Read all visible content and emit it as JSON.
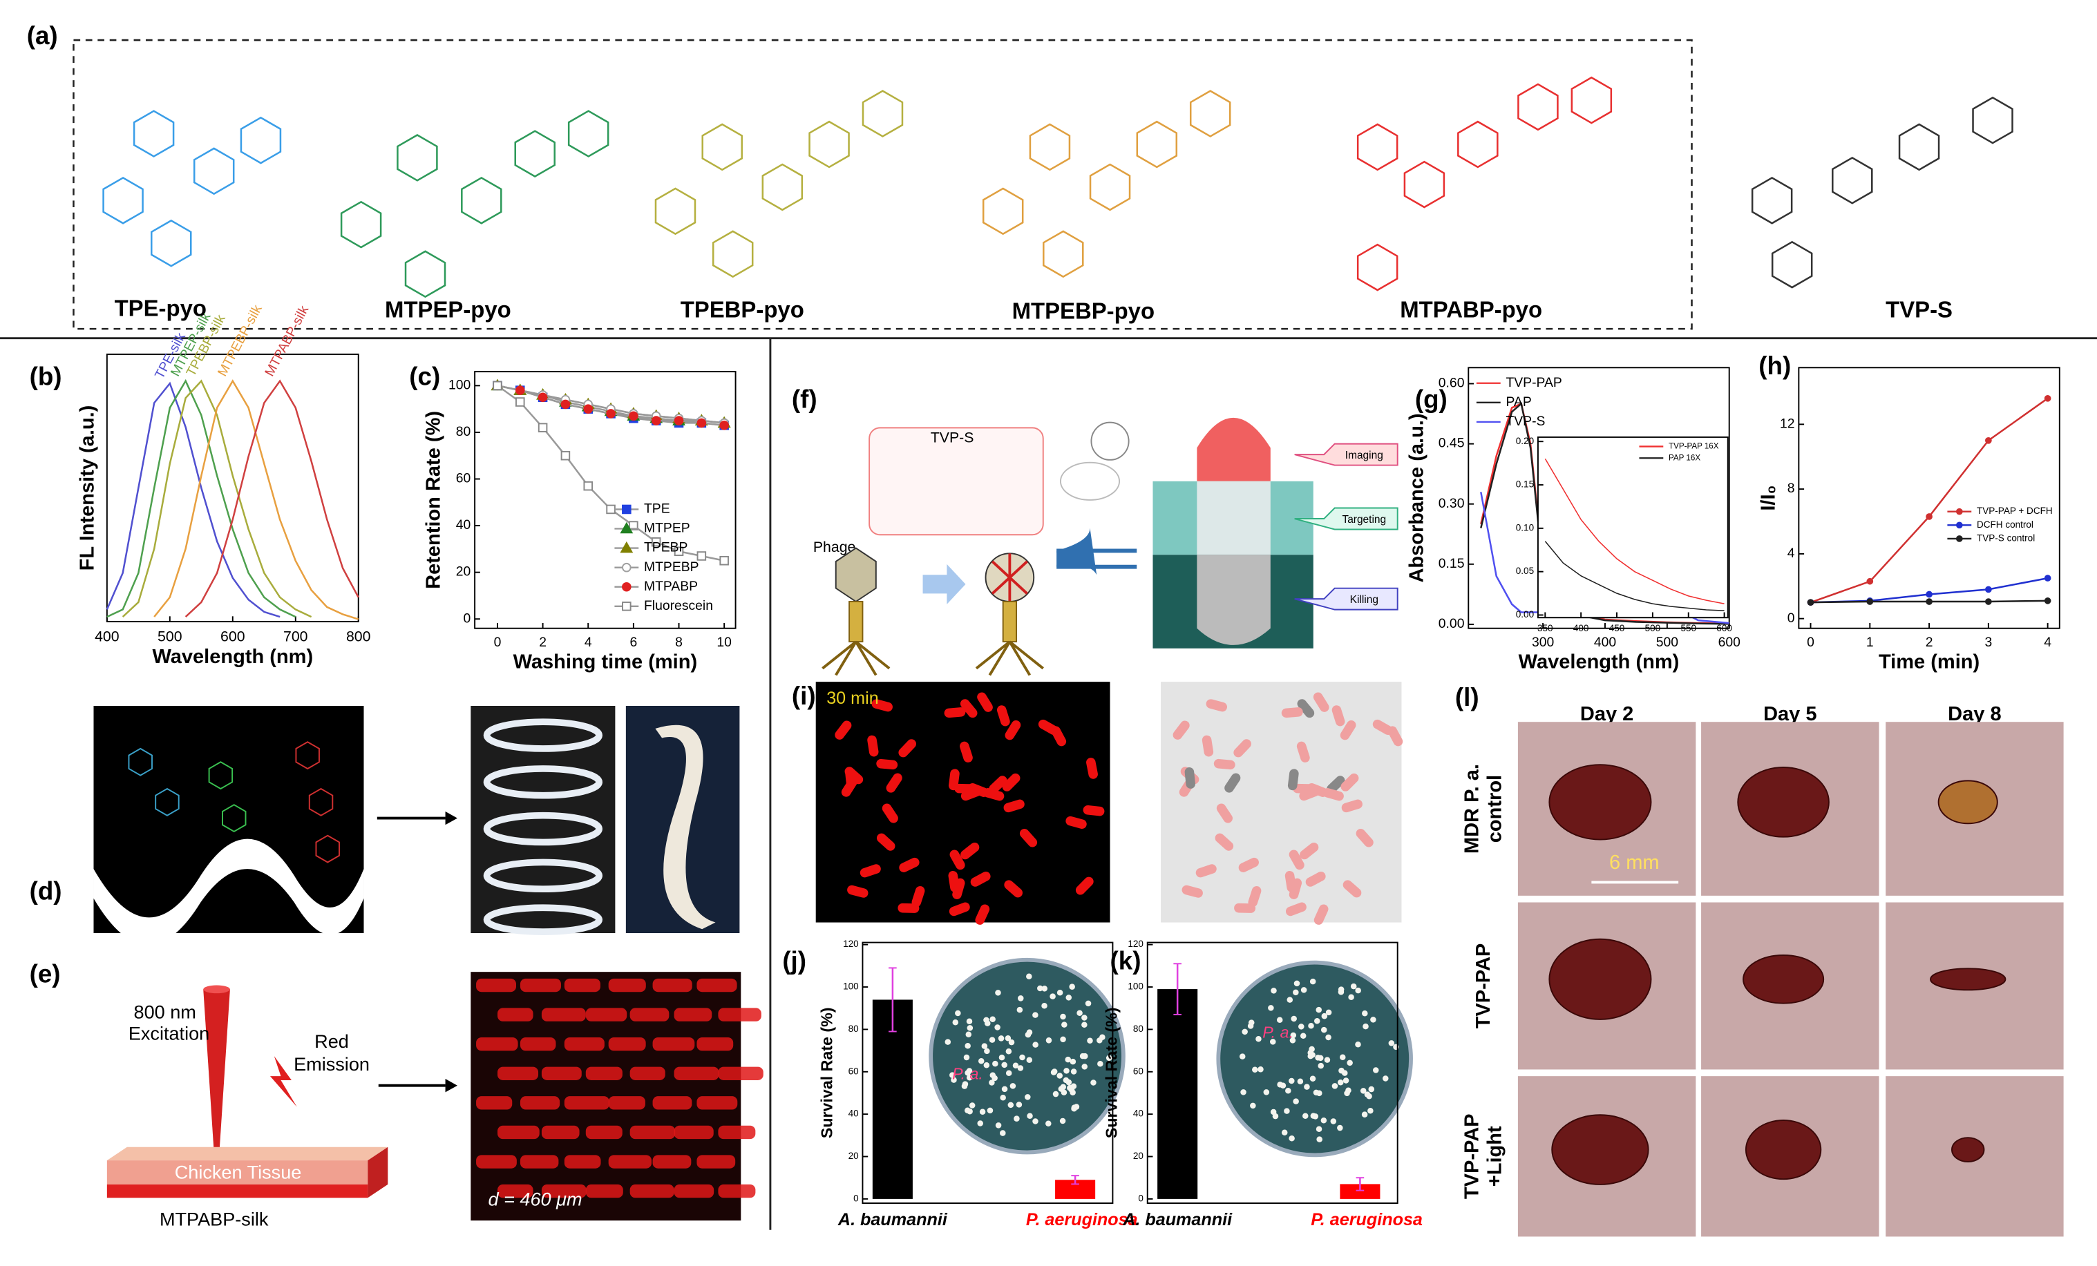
{
  "figure": {
    "panel_labels": [
      "(a)",
      "(b)",
      "(c)",
      "(d)",
      "(e)",
      "(f)",
      "(g)",
      "(h)",
      "(i)",
      "(j)",
      "(k)",
      "(l)"
    ],
    "compounds": [
      "TPE-pyo",
      "MTPEP-pyo",
      "TPEBP-pyo",
      "MTPEBP-pyo",
      "MTPABP-pyo",
      "TVP-S"
    ],
    "panel_e": {
      "excitation": [
        "800 nm",
        "Excitation"
      ],
      "emission": [
        "Red",
        "Emission"
      ],
      "tissue": "Chicken Tissue",
      "substrate": "MTPABP-silk",
      "depth": "d = 460 μm"
    },
    "panel_f": {
      "compound": "TVP-S",
      "phage": "Phage",
      "functions": [
        "Imaging",
        "Targeting",
        "Killing"
      ]
    },
    "panel_i": {
      "time": "30 min"
    },
    "plates": [
      "P. a.",
      "P. a."
    ],
    "panel_l": {
      "columns": [
        "Day 2",
        "Day 5",
        "Day 8"
      ],
      "rows": [
        [
          "MDR P. a.",
          "control"
        ],
        [
          "TVP-PAP"
        ],
        [
          "TVP-PAP",
          "+Light"
        ]
      ],
      "scale": "6 mm"
    }
  },
  "chart_data": [
    {
      "type": "line",
      "x_label": "Wavelength (nm)",
      "y_label": "FL Intensity (a.u.)",
      "xlim": [
        400,
        800
      ],
      "ylim": [
        0,
        1.1
      ],
      "xticks": [
        400,
        500,
        600,
        700,
        800
      ],
      "legend": "inline",
      "x": [
        400,
        425,
        450,
        475,
        500,
        525,
        550,
        575,
        600,
        625,
        650,
        675,
        700,
        725,
        750,
        775,
        800
      ],
      "series": [
        {
          "name": "TPE-silk",
          "color": "#5050d0",
          "values": [
            0.05,
            0.2,
            0.55,
            0.9,
            0.98,
            0.8,
            0.55,
            0.33,
            0.18,
            0.09,
            0.04,
            0.02,
            null,
            null,
            null,
            null,
            null
          ]
        },
        {
          "name": "MTPEP-silk",
          "color": "#4ea04e",
          "values": [
            0.02,
            0.05,
            0.2,
            0.55,
            0.88,
            0.99,
            0.85,
            0.6,
            0.38,
            0.2,
            0.1,
            0.05,
            0.02,
            null,
            null,
            null,
            null
          ]
        },
        {
          "name": "TPEBP-silk",
          "color": "#a8ac3c",
          "values": [
            null,
            0.02,
            0.08,
            0.3,
            0.65,
            0.92,
            0.99,
            0.85,
            0.6,
            0.38,
            0.2,
            0.1,
            0.05,
            0.02,
            null,
            null,
            null
          ]
        },
        {
          "name": "MTPEBP-silk",
          "color": "#e8a040",
          "values": [
            null,
            null,
            null,
            0.02,
            0.1,
            0.3,
            0.6,
            0.88,
            0.99,
            0.88,
            0.65,
            0.42,
            0.25,
            0.13,
            0.06,
            0.03,
            0.01
          ]
        },
        {
          "name": "MTPABP-silk",
          "color": "#d04040",
          "values": [
            null,
            null,
            null,
            null,
            null,
            0.02,
            0.08,
            0.2,
            0.42,
            0.68,
            0.9,
            0.99,
            0.88,
            0.66,
            0.42,
            0.22,
            0.1
          ]
        }
      ]
    },
    {
      "type": "line",
      "x_label": "Washing time (min)",
      "y_label": "Retention Rate (%)",
      "xlim": [
        -1,
        10.5
      ],
      "ylim": [
        -4,
        106
      ],
      "xticks": [
        0,
        2,
        4,
        6,
        8,
        10
      ],
      "yticks": [
        0,
        20,
        40,
        60,
        80,
        100
      ],
      "legend": "lower right",
      "x": [
        0,
        1,
        2,
        3,
        4,
        5,
        6,
        7,
        8,
        9,
        10
      ],
      "series": [
        {
          "name": "TPE",
          "color": "#2040e0",
          "marker": "square",
          "filled": true,
          "values": [
            100,
            98,
            95,
            92,
            90,
            88,
            86,
            85,
            84,
            84,
            83
          ]
        },
        {
          "name": "MTPEP",
          "color": "#208020",
          "marker": "triangle",
          "filled": true,
          "values": [
            100,
            98,
            96,
            93,
            91,
            89,
            87,
            86,
            85,
            85,
            84
          ]
        },
        {
          "name": "TPEBP",
          "color": "#808000",
          "marker": "triangle",
          "filled": true,
          "values": [
            100,
            98,
            96,
            94,
            92,
            90,
            88,
            87,
            86,
            85,
            84
          ]
        },
        {
          "name": "MTPEBP",
          "color": "#a0a0a0",
          "marker": "circle",
          "filled": false,
          "values": [
            100,
            98,
            96,
            94,
            92,
            90,
            88,
            87,
            86,
            85,
            84
          ]
        },
        {
          "name": "MTPABP",
          "color": "#e02020",
          "marker": "circle",
          "filled": true,
          "values": [
            100,
            98,
            95,
            92,
            90,
            88,
            87,
            85,
            85,
            84,
            83
          ]
        },
        {
          "name": "Fluorescein",
          "color": "#888888",
          "marker": "square",
          "filled": false,
          "values": [
            100,
            93,
            82,
            70,
            57,
            47,
            40,
            33,
            29,
            27,
            25
          ]
        }
      ]
    },
    {
      "type": "line",
      "x_label": "Wavelength (nm)",
      "y_label": "Absorbance (a.u.)",
      "xlim": [
        180,
        600
      ],
      "ylim": [
        -0.01,
        0.64
      ],
      "xticks": [
        300,
        400,
        500,
        600
      ],
      "yticks": [
        {
          "value": 0,
          "label": "0.00"
        },
        0.15,
        {
          "value": 0.3,
          "label": "0.30"
        },
        0.45,
        {
          "value": 0.6,
          "label": "0.60"
        }
      ],
      "legend": "upper left",
      "x": [
        200,
        225,
        250,
        265,
        280,
        300,
        325,
        350,
        400,
        450,
        500,
        550,
        600
      ],
      "series": [
        {
          "name": "TVP-PAP",
          "color": "#f03030",
          "values": [
            0.25,
            0.42,
            0.54,
            0.55,
            0.45,
            0.15,
            0.06,
            0.03,
            0.012,
            0.008,
            0.005,
            0.003,
            0.002
          ]
        },
        {
          "name": "PAP",
          "color": "#202020",
          "values": [
            0.24,
            0.4,
            0.53,
            0.55,
            0.44,
            0.14,
            0.05,
            0.025,
            0.01,
            0.006,
            0.004,
            0.002,
            0.001
          ]
        },
        {
          "name": "TVP-S",
          "color": "#5050f0",
          "values": [
            0.33,
            0.12,
            0.05,
            0.03,
            0.03,
            0.03,
            0.025,
            0.02,
            0.04,
            0.1,
            0.05,
            0.01,
            0.003
          ]
        }
      ]
    },
    {
      "type": "line",
      "xlim": [
        340,
        605
      ],
      "ylim": [
        -0.003,
        0.205
      ],
      "xticks": [
        350,
        400,
        450,
        500,
        550,
        600
      ],
      "yticks": [
        {
          "value": 0,
          "label": "0.00"
        },
        0.05,
        {
          "value": 0.1,
          "label": "0.10"
        },
        0.15,
        {
          "value": 0.2,
          "label": "0.20"
        }
      ],
      "legend": "upper right",
      "x": [
        350,
        375,
        400,
        425,
        450,
        475,
        500,
        525,
        550,
        575,
        600
      ],
      "series": [
        {
          "name": "TVP-PAP 16X",
          "color": "#f03030",
          "values": [
            0.18,
            0.145,
            0.11,
            0.085,
            0.065,
            0.05,
            0.04,
            0.03,
            0.022,
            0.017,
            0.013
          ]
        },
        {
          "name": "PAP 16X",
          "color": "#202020",
          "values": [
            0.085,
            0.06,
            0.045,
            0.035,
            0.025,
            0.018,
            0.013,
            0.01,
            0.008,
            0.006,
            0.005
          ]
        }
      ]
    },
    {
      "type": "line",
      "x_label": "Time (min)",
      "y_label": "I/I₀",
      "xlim": [
        -0.2,
        4.2
      ],
      "ylim": [
        -0.6,
        15.5
      ],
      "xticks": [
        0,
        1,
        2,
        3,
        4
      ],
      "yticks": [
        0,
        4,
        8,
        12
      ],
      "legend": "center right",
      "x": [
        0,
        1,
        2,
        3,
        4
      ],
      "series": [
        {
          "name": "TVP-PAP + DCFH",
          "color": "#d03030",
          "marker": "circle",
          "filled": true,
          "values": [
            1,
            2.3,
            6.3,
            11,
            13.6
          ]
        },
        {
          "name": "DCFH control",
          "color": "#2030d0",
          "marker": "circle",
          "filled": true,
          "values": [
            1,
            1.1,
            1.5,
            1.8,
            2.5
          ]
        },
        {
          "name": "TVP-S control",
          "color": "#202020",
          "marker": "circle",
          "filled": true,
          "values": [
            1,
            1.05,
            1.05,
            1.05,
            1.1
          ]
        }
      ]
    },
    {
      "type": "bar",
      "y_label": "Survival Rate (%)",
      "ylim": [
        -2,
        121
      ],
      "yticks": [
        0,
        20,
        40,
        60,
        80,
        100,
        120
      ],
      "categories": [
        "A. baumannii",
        "P. aeruginosa"
      ],
      "values": [
        94,
        9
      ],
      "errors": [
        15,
        2
      ],
      "colors": [
        "#000000",
        "#ff0000"
      ],
      "category_colors": [
        "#000000",
        "#ff0000"
      ],
      "error_color": "#e040e0"
    },
    {
      "type": "bar",
      "y_label": "Survival Rate (%)",
      "ylim": [
        -2,
        121
      ],
      "yticks": [
        0,
        20,
        40,
        60,
        80,
        100,
        120
      ],
      "categories": [
        "A. baumannii",
        "P. aeruginosa"
      ],
      "values": [
        99,
        7
      ],
      "errors": [
        12,
        3
      ],
      "colors": [
        "#000000",
        "#ff0000"
      ],
      "category_colors": [
        "#000000",
        "#ff0000"
      ],
      "error_color": "#e040e0"
    }
  ]
}
